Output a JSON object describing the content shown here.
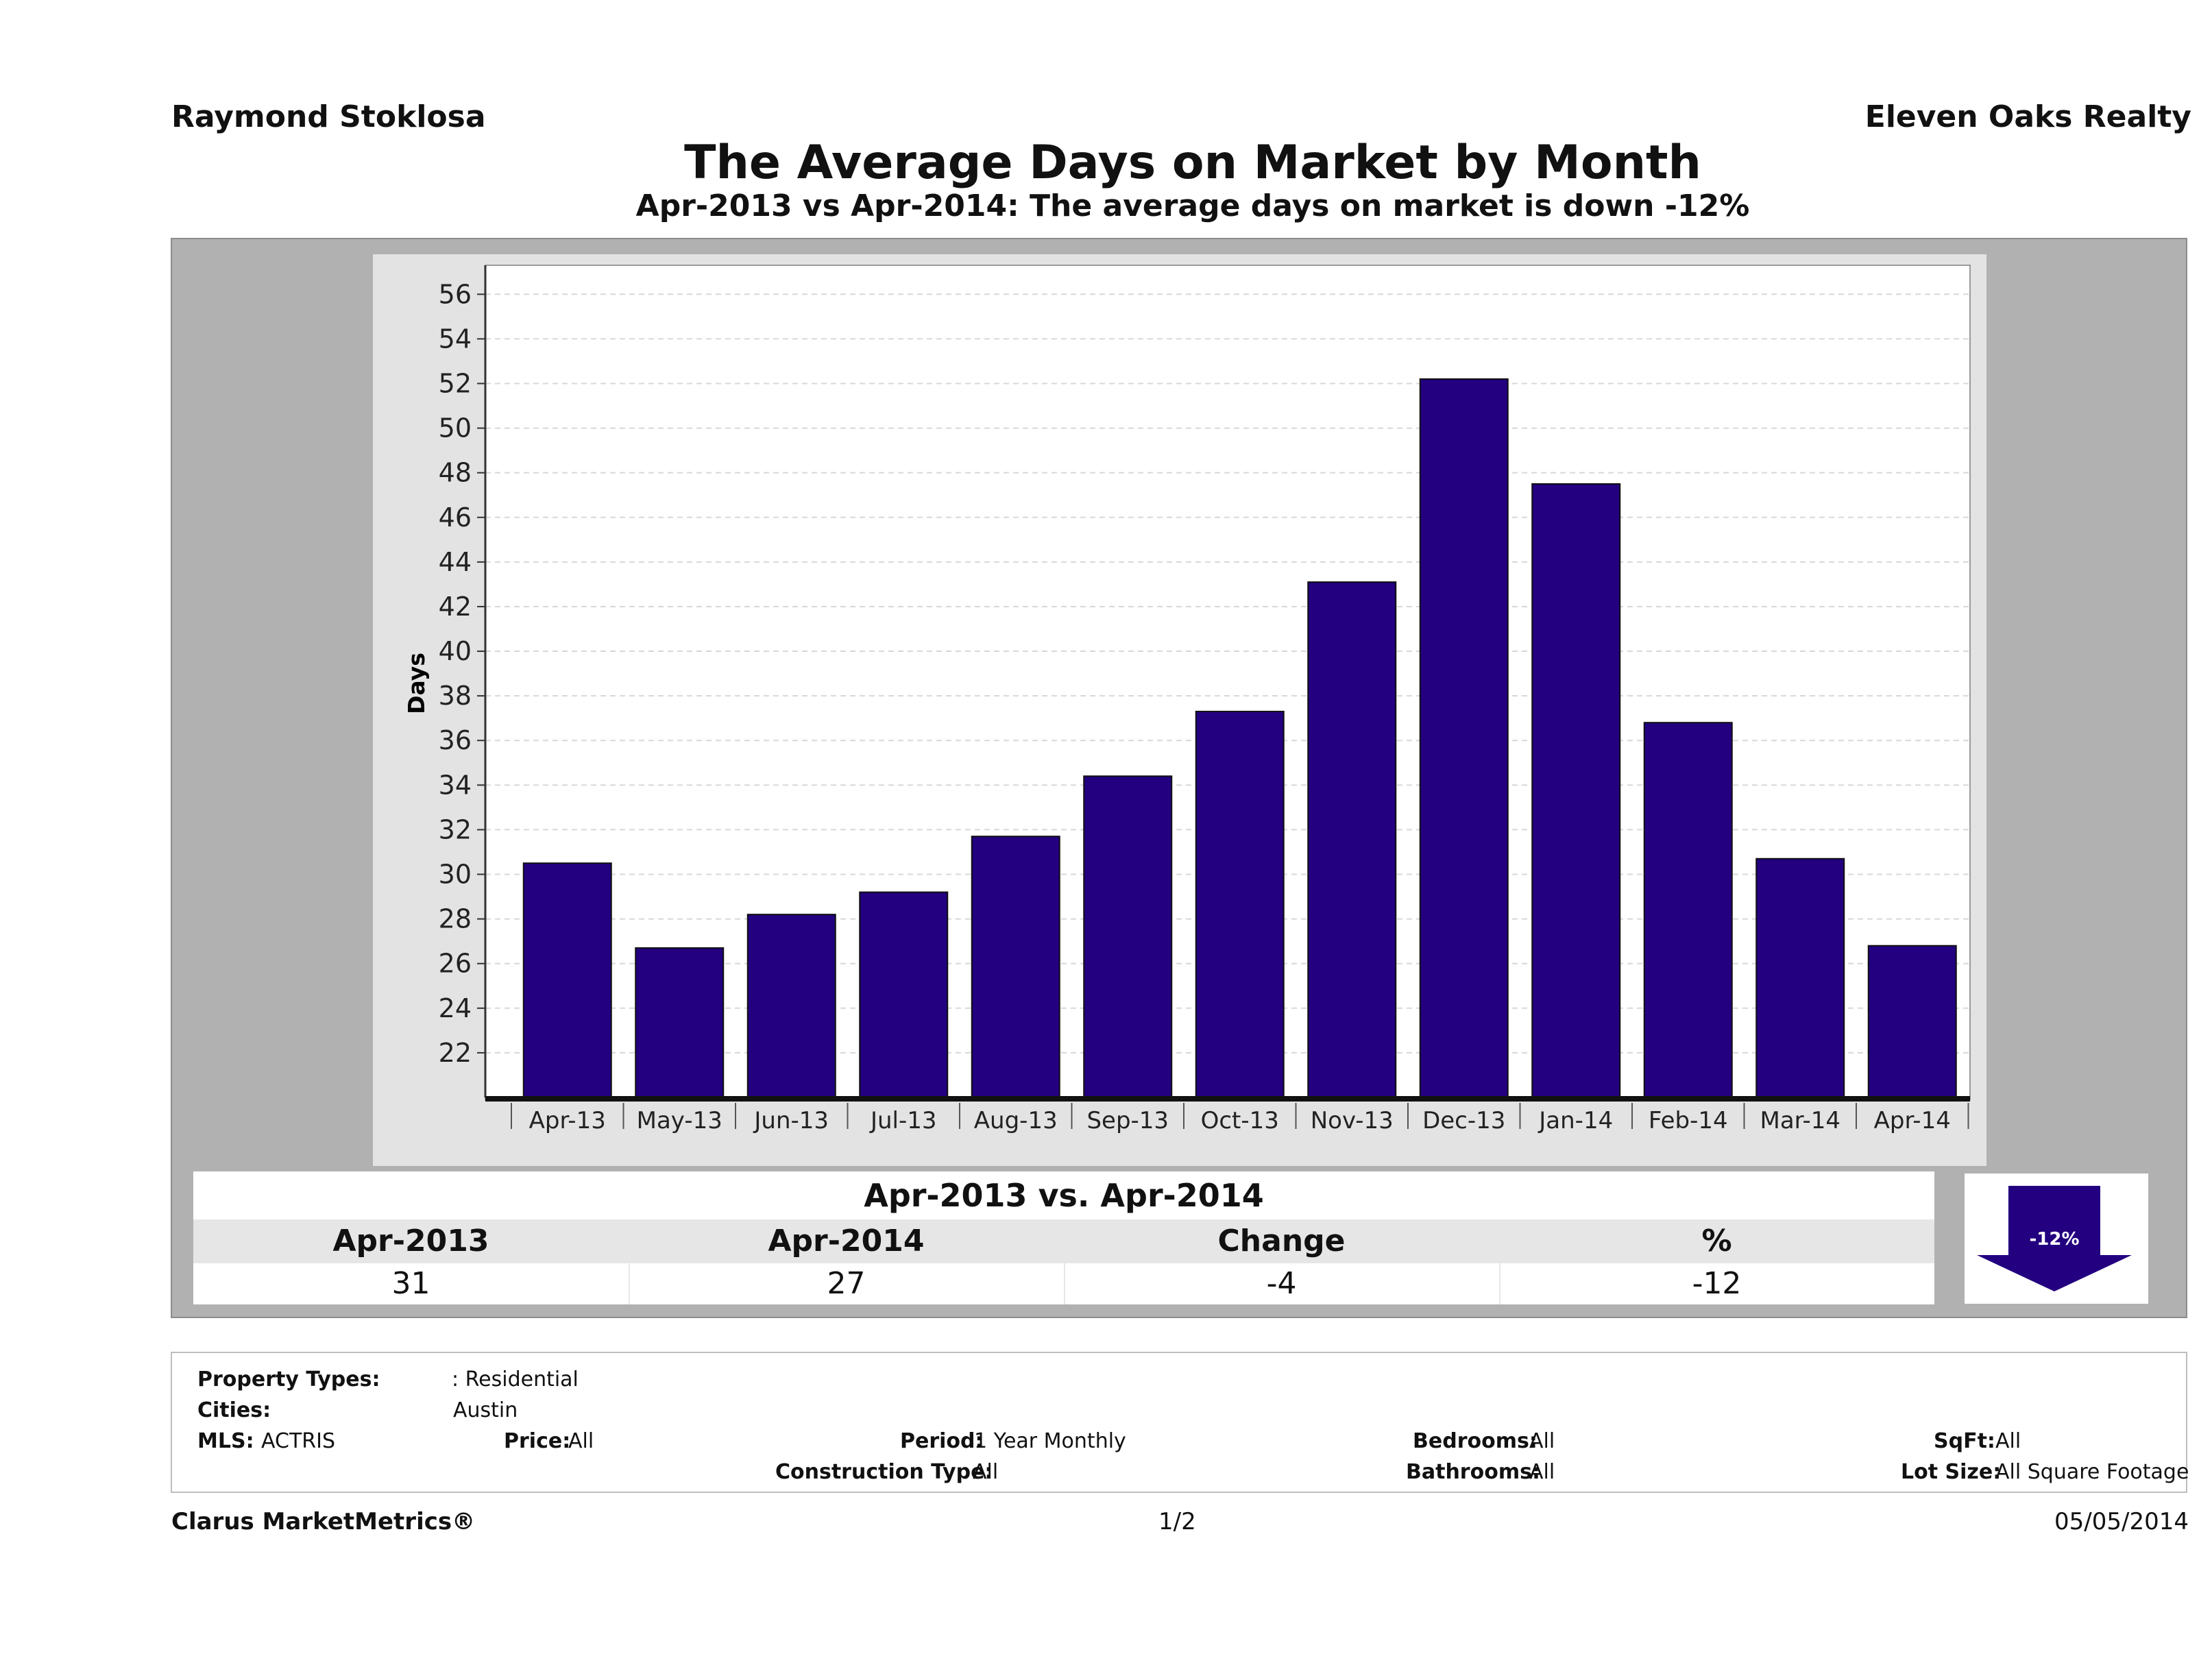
{
  "header": {
    "agent_name": "Raymond Stoklosa",
    "company_name": "Eleven Oaks Realty",
    "title": "The Average Days on Market by Month",
    "subtitle": "Apr-2013 vs Apr-2014: The average days on market is down -12%"
  },
  "colors": {
    "bar": "#22007f",
    "frame": "#b1b1b1",
    "plot_background": "#ffffff",
    "gridline": "#d8d8d8"
  },
  "chart_data": {
    "type": "bar",
    "title": "",
    "xlabel": "",
    "ylabel": "Days",
    "categories": [
      "Apr-13",
      "May-13",
      "Jun-13",
      "Jul-13",
      "Aug-13",
      "Sep-13",
      "Oct-13",
      "Nov-13",
      "Dec-13",
      "Jan-14",
      "Feb-14",
      "Mar-14",
      "Apr-14"
    ],
    "values": [
      30.5,
      26.7,
      28.2,
      29.2,
      31.7,
      34.4,
      37.3,
      43.1,
      52.2,
      47.5,
      36.8,
      30.7,
      26.8
    ],
    "ylim": [
      20,
      57.3
    ],
    "yticks": [
      22,
      24,
      26,
      28,
      30,
      32,
      34,
      36,
      38,
      40,
      42,
      44,
      46,
      48,
      50,
      52,
      54,
      56
    ],
    "grid": true,
    "legend": "none"
  },
  "summary": {
    "title": "Apr-2013 vs. Apr-2014",
    "headers": [
      "Apr-2013",
      "Apr-2014",
      "Change",
      "%"
    ],
    "values": [
      "31",
      "27",
      "-4",
      "-12"
    ],
    "badge": "-12%",
    "trend_icon": "down-arrow-icon"
  },
  "filters": {
    "property_types_label": "Property Types:",
    "property_types_value": ": Residential",
    "cities_label": "Cities:",
    "cities_value": "Austin",
    "mls_label": "MLS:",
    "mls_value": "ACTRIS",
    "price_label": "Price:",
    "price_value": "All",
    "period_label": "Period:",
    "period_value": "1 Year Monthly",
    "construction_label": "Construction Type:",
    "construction_value": "All",
    "bedrooms_label": "Bedrooms:",
    "bedrooms_value": "All",
    "bathrooms_label": "Bathrooms:",
    "bathrooms_value": "All",
    "sqft_label": "SqFt:",
    "sqft_value": "All",
    "lotsize_label": "Lot Size:",
    "lotsize_value": "All Square Footage"
  },
  "footer": {
    "brand": "Clarus MarketMetrics®",
    "page": "1/2",
    "date": "05/05/2014"
  }
}
